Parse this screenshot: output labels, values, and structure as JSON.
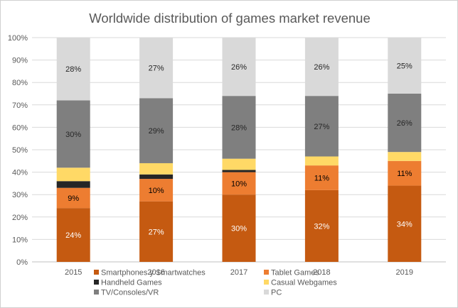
{
  "chart_data": {
    "type": "bar",
    "stacked": true,
    "title": "Worldwide distribution of games market revenue",
    "categories": [
      "2015",
      "2016",
      "2017",
      "2018",
      "2019"
    ],
    "ylim": [
      0,
      100
    ],
    "y_ticks": [
      "0%",
      "10%",
      "20%",
      "30%",
      "40%",
      "50%",
      "60%",
      "70%",
      "80%",
      "90%",
      "100%"
    ],
    "grid": true,
    "legend_position": "bottom",
    "series": [
      {
        "name": "Smartphones y Smartwatches",
        "color": "#c55a11",
        "label_color": "#ffffff",
        "values": [
          24,
          27,
          30,
          32,
          34
        ],
        "labels": [
          "24%",
          "27%",
          "30%",
          "32%",
          "34%"
        ]
      },
      {
        "name": "Tablet Games",
        "color": "#ed7d31",
        "label_color": "#000000",
        "values": [
          9,
          10,
          10,
          11,
          11
        ],
        "labels": [
          "9%",
          "10%",
          "10%",
          "11%",
          "11%"
        ]
      },
      {
        "name": "Handheld Games",
        "color": "#262626",
        "label_color": "#ffffff",
        "values": [
          3,
          2,
          1,
          0,
          0
        ],
        "labels": [
          "",
          "",
          "",
          "",
          ""
        ]
      },
      {
        "name": "Casual Webgames",
        "color": "#ffd966",
        "label_color": "#000000",
        "values": [
          6,
          5,
          5,
          4,
          4
        ],
        "labels": [
          "",
          "",
          "",
          "",
          ""
        ]
      },
      {
        "name": "TV/Consoles/VR",
        "color": "#7f7f7f",
        "label_color": "#262626",
        "values": [
          30,
          29,
          28,
          27,
          26
        ],
        "labels": [
          "30%",
          "29%",
          "28%",
          "27%",
          "26%"
        ]
      },
      {
        "name": "PC",
        "color": "#d9d9d9",
        "label_color": "#262626",
        "values": [
          28,
          27,
          26,
          26,
          25
        ],
        "labels": [
          "28%",
          "27%",
          "26%",
          "26%",
          "25%"
        ]
      }
    ]
  }
}
